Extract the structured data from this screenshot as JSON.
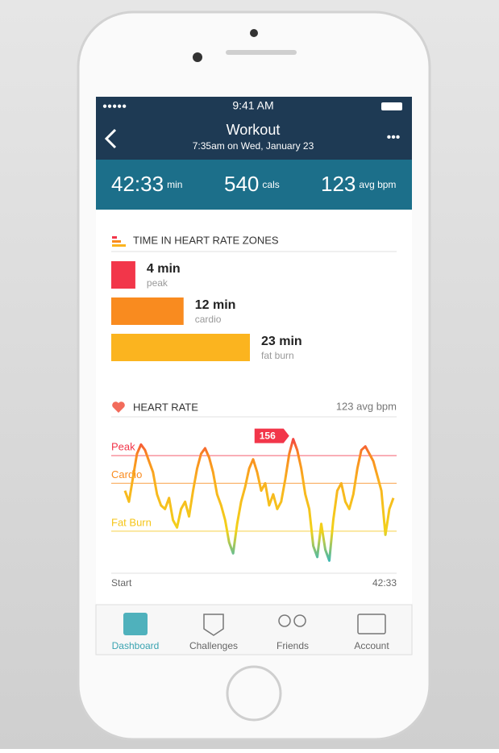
{
  "status": {
    "time": "9:41 AM"
  },
  "header": {
    "title": "Workout",
    "subtitle": "7:35am on Wed, January 23"
  },
  "stats": [
    {
      "value": "42:33",
      "unit": "min"
    },
    {
      "value": "540",
      "unit": "cals"
    },
    {
      "value": "123",
      "unit": "avg bpm"
    }
  ],
  "zones": {
    "title": "TIME IN HEART RATE ZONES",
    "items": [
      {
        "name": "peak",
        "minutes": 4,
        "minutes_label": "4 min",
        "color": "#f2364a"
      },
      {
        "name": "cardio",
        "minutes": 12,
        "minutes_label": "12 min",
        "color": "#f98b1f"
      },
      {
        "name": "fat burn",
        "minutes": 23,
        "minutes_label": "23 min",
        "color": "#fbb41f"
      }
    ]
  },
  "chart_data": {
    "type": "line",
    "title": "HEART RATE",
    "subtitle": "123 avg bpm",
    "x_start": "Start",
    "x_end": "42:33",
    "peak": 156,
    "ylim": [
      88,
      158
    ],
    "zones": [
      {
        "name": "Peak",
        "value": 147,
        "color": "#f2364a"
      },
      {
        "name": "Cardio",
        "value": 132,
        "color": "#f98b1f"
      },
      {
        "name": "Fat Burn",
        "value": 106,
        "color": "#f5c518"
      }
    ],
    "values": [
      128,
      122,
      135,
      148,
      153,
      150,
      144,
      138,
      126,
      120,
      118,
      124,
      112,
      108,
      118,
      122,
      114,
      128,
      140,
      148,
      151,
      146,
      138,
      126,
      120,
      112,
      100,
      94,
      110,
      122,
      130,
      140,
      145,
      138,
      128,
      132,
      120,
      126,
      118,
      122,
      134,
      148,
      156,
      150,
      140,
      126,
      118,
      98,
      92,
      110,
      96,
      90,
      112,
      128,
      132,
      122,
      118,
      126,
      140,
      150,
      152,
      148,
      144,
      136,
      128,
      104,
      118,
      124
    ]
  },
  "tabs": [
    "Dashboard",
    "Challenges",
    "Friends",
    "Account"
  ]
}
